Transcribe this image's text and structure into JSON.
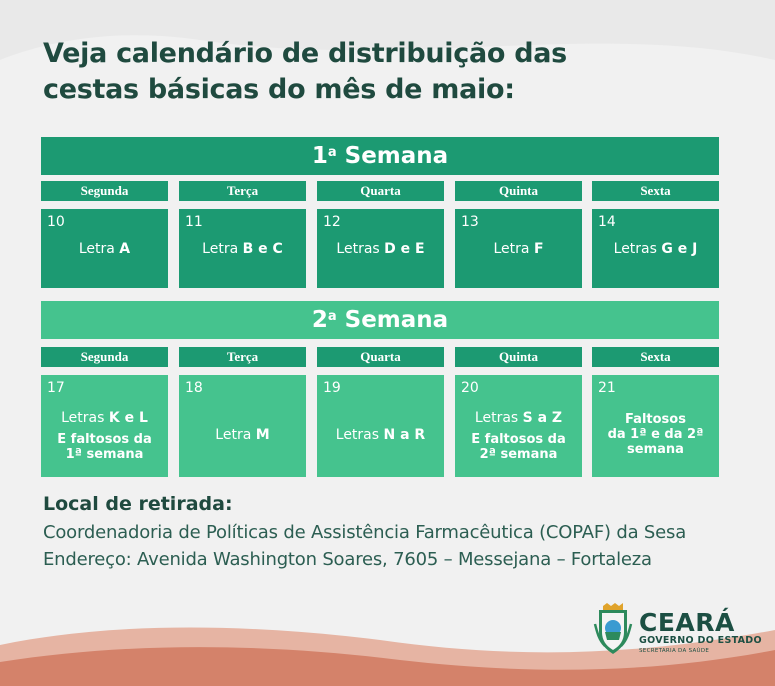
{
  "title": {
    "line1": "Veja calendário de distribuição das",
    "line2": "cestas básicas do mês de maio:"
  },
  "weeks": [
    {
      "ord": "1",
      "sup": "a",
      "label": "Semana",
      "days": [
        {
          "name": "Segunda",
          "num": "10",
          "prefix": "Letra ",
          "letters": "A",
          "extra": []
        },
        {
          "name": "Terça",
          "num": "11",
          "prefix": "Letra ",
          "letters": "B e C",
          "extra": []
        },
        {
          "name": "Quarta",
          "num": "12",
          "prefix": "Letras ",
          "letters": "D e E",
          "extra": []
        },
        {
          "name": "Quinta",
          "num": "13",
          "prefix": "Letra ",
          "letters": "F",
          "extra": []
        },
        {
          "name": "Sexta",
          "num": "14",
          "prefix": "Letras ",
          "letters": "G e J",
          "extra": []
        }
      ]
    },
    {
      "ord": "2",
      "sup": "a",
      "label": "Semana",
      "days": [
        {
          "name": "Segunda",
          "num": "17",
          "prefix": "Letras ",
          "letters": "K e L",
          "extra": [
            "E faltosos da",
            "1ª semana"
          ]
        },
        {
          "name": "Terça",
          "num": "18",
          "prefix": "Letra ",
          "letters": "M",
          "extra": []
        },
        {
          "name": "Quarta",
          "num": "19",
          "prefix": "Letras ",
          "letters": "N a R",
          "extra": []
        },
        {
          "name": "Quinta",
          "num": "20",
          "prefix": "Letras ",
          "letters": "S a Z",
          "extra": [
            "E faltosos da",
            "2ª semana"
          ]
        },
        {
          "name": "Sexta",
          "num": "21",
          "prefix": "",
          "letters": "",
          "extra": [
            "Faltosos",
            "da 1ª e da 2ª",
            "semana"
          ]
        }
      ]
    }
  ],
  "local": {
    "title": "Local de retirada:",
    "line1": "Coordenadoria de Políticas de Assistência Farmacêutica (COPAF) da Sesa",
    "line2": "Endereço: Avenida Washington Soares, 7605 – Messejana – Fortaleza"
  },
  "logo": {
    "name": "CEARÁ",
    "gov": "GOVERNO DO ESTADO",
    "sec": "SECRETARIA DA SAÚDE"
  },
  "colors": {
    "title": "#1f4a3f",
    "week1": "#1c9a72",
    "week2": "#45c38e",
    "swoosh": "#d98a73"
  }
}
